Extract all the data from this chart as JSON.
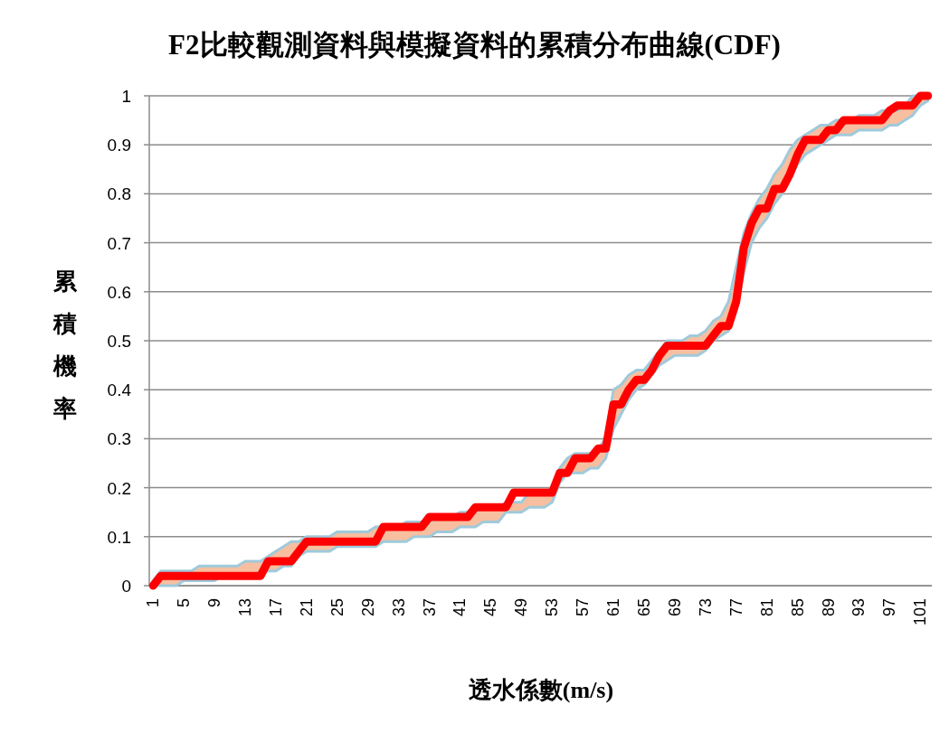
{
  "chart_data": {
    "type": "line",
    "title": "F2比較觀測資料與模擬資料的累積分布曲線(CDF)",
    "xlabel": "透水係數(m/s)",
    "ylabel": "累積機率",
    "categories": [
      "1",
      null,
      null,
      null,
      "5",
      null,
      null,
      null,
      "9",
      null,
      null,
      null,
      "13",
      null,
      null,
      null,
      "17",
      null,
      null,
      null,
      "21",
      null,
      null,
      null,
      "25",
      null,
      null,
      null,
      "29",
      null,
      null,
      null,
      "33",
      null,
      null,
      null,
      "37",
      null,
      null,
      null,
      "41",
      null,
      null,
      null,
      "45",
      null,
      null,
      null,
      "49",
      null,
      null,
      null,
      "53",
      null,
      null,
      null,
      "57",
      null,
      null,
      null,
      "61",
      null,
      null,
      null,
      "65",
      null,
      null,
      null,
      "69",
      null,
      null,
      null,
      "73",
      null,
      null,
      null,
      "77",
      null,
      null,
      null,
      "81",
      null,
      null,
      null,
      "85",
      null,
      null,
      null,
      "89",
      null,
      null,
      null,
      "93",
      null,
      null,
      null,
      "97",
      null,
      null,
      null,
      "101",
      null
    ],
    "series": [
      {
        "color": "#ff0000",
        "values": [
          0,
          0.02,
          0.02,
          0.02,
          0.02,
          0.02,
          0.02,
          0.02,
          0.02,
          0.02,
          0.02,
          0.02,
          0.02,
          0.02,
          0.02,
          0.05,
          0.05,
          0.05,
          0.05,
          0.07,
          0.09,
          0.09,
          0.09,
          0.09,
          0.09,
          0.09,
          0.09,
          0.09,
          0.09,
          0.09,
          0.12,
          0.12,
          0.12,
          0.12,
          0.12,
          0.12,
          0.14,
          0.14,
          0.14,
          0.14,
          0.14,
          0.14,
          0.16,
          0.16,
          0.16,
          0.16,
          0.16,
          0.19,
          0.19,
          0.19,
          0.19,
          0.19,
          0.19,
          0.23,
          0.23,
          0.26,
          0.26,
          0.26,
          0.28,
          0.28,
          0.37,
          0.37,
          0.4,
          0.42,
          0.42,
          0.44,
          0.47,
          0.49,
          0.49,
          0.49,
          0.49,
          0.49,
          0.49,
          0.51,
          0.53,
          0.53,
          0.58,
          0.69,
          0.74,
          0.77,
          0.77,
          0.81,
          0.81,
          0.84,
          0.88,
          0.91,
          0.91,
          0.91,
          0.93,
          0.93,
          0.95,
          0.95,
          0.95,
          0.95,
          0.95,
          0.95,
          0.97,
          0.98,
          0.98,
          0.98,
          1.0,
          1.0
        ],
        "lower": [
          0,
          0,
          0,
          0,
          0.01,
          0.01,
          0.01,
          0.01,
          0.01,
          0.02,
          0.02,
          0.02,
          0.02,
          0.02,
          0.03,
          0.03,
          0.03,
          0.04,
          0.04,
          0.06,
          0.07,
          0.07,
          0.07,
          0.07,
          0.08,
          0.08,
          0.08,
          0.08,
          0.08,
          0.08,
          0.09,
          0.09,
          0.09,
          0.09,
          0.1,
          0.1,
          0.1,
          0.11,
          0.11,
          0.11,
          0.12,
          0.12,
          0.12,
          0.13,
          0.13,
          0.13,
          0.15,
          0.15,
          0.15,
          0.16,
          0.16,
          0.16,
          0.17,
          0.21,
          0.23,
          0.23,
          0.23,
          0.24,
          0.24,
          0.26,
          0.32,
          0.35,
          0.38,
          0.4,
          0.41,
          0.43,
          0.45,
          0.46,
          0.47,
          0.47,
          0.47,
          0.47,
          0.48,
          0.5,
          0.51,
          0.52,
          0.56,
          0.64,
          0.7,
          0.73,
          0.75,
          0.78,
          0.8,
          0.83,
          0.86,
          0.88,
          0.89,
          0.9,
          0.91,
          0.92,
          0.92,
          0.92,
          0.93,
          0.93,
          0.93,
          0.93,
          0.94,
          0.94,
          0.95,
          0.96,
          0.98,
          0.99
        ],
        "upper": [
          0.01,
          0.03,
          0.03,
          0.03,
          0.03,
          0.03,
          0.04,
          0.04,
          0.04,
          0.04,
          0.04,
          0.04,
          0.05,
          0.05,
          0.05,
          0.06,
          0.07,
          0.08,
          0.09,
          0.09,
          0.1,
          0.1,
          0.1,
          0.1,
          0.11,
          0.11,
          0.11,
          0.11,
          0.11,
          0.12,
          0.12,
          0.12,
          0.12,
          0.13,
          0.13,
          0.13,
          0.13,
          0.14,
          0.14,
          0.14,
          0.15,
          0.15,
          0.15,
          0.16,
          0.16,
          0.16,
          0.17,
          0.17,
          0.17,
          0.19,
          0.19,
          0.19,
          0.2,
          0.24,
          0.26,
          0.27,
          0.27,
          0.27,
          0.28,
          0.3,
          0.4,
          0.41,
          0.43,
          0.44,
          0.44,
          0.46,
          0.48,
          0.5,
          0.5,
          0.5,
          0.51,
          0.51,
          0.52,
          0.54,
          0.55,
          0.58,
          0.65,
          0.72,
          0.76,
          0.79,
          0.81,
          0.84,
          0.86,
          0.89,
          0.91,
          0.92,
          0.93,
          0.94,
          0.94,
          0.95,
          0.95,
          0.95,
          0.96,
          0.96,
          0.96,
          0.97,
          0.97,
          0.97,
          0.98,
          1.0,
          1.0,
          1.0
        ]
      }
    ],
    "ylim": [
      0,
      1
    ],
    "yticks": [
      0,
      0.1,
      0.2,
      0.3,
      0.4,
      0.5,
      0.6,
      0.7,
      0.8,
      0.9,
      1
    ],
    "grid": "y"
  }
}
